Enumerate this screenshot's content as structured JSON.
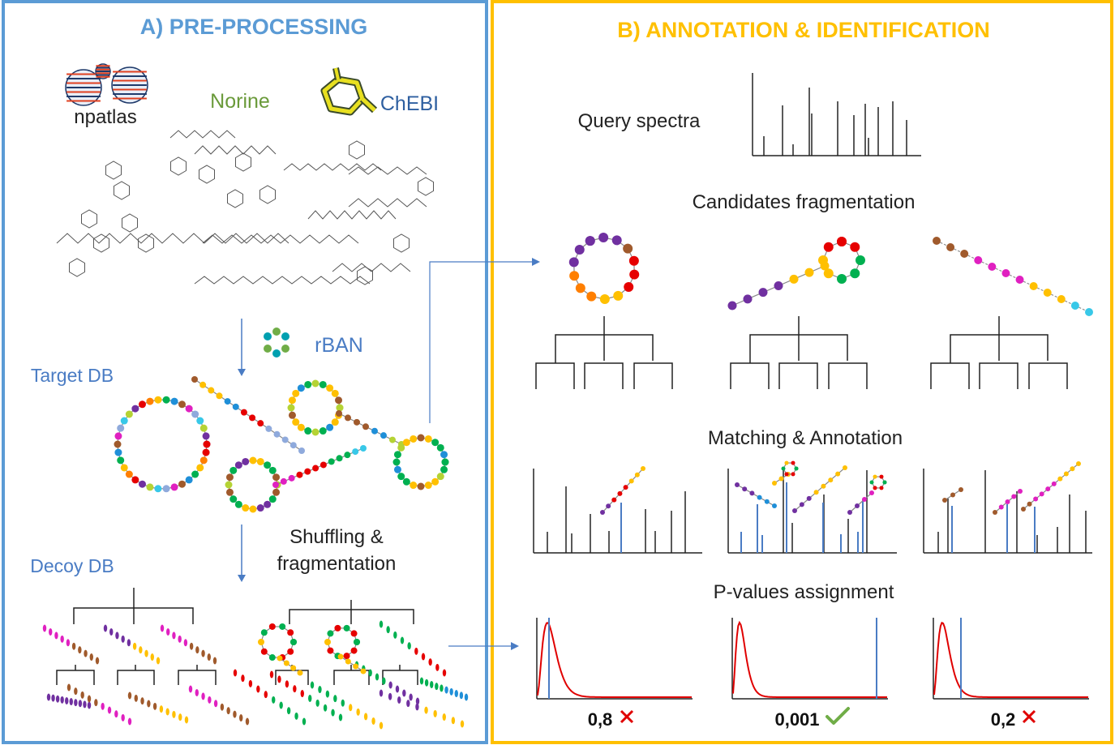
{
  "panel_a": {
    "title": "A) PRE-PROCESSING",
    "border_color": "#5b9bd5",
    "sources": {
      "npatlas": "npatlas",
      "norine": "Norine",
      "chebi": "ChEBI"
    },
    "tool": "rBAN",
    "target_db": "Target DB",
    "shuffle_label_1": "Shuffling &",
    "shuffle_label_2": "fragmentation",
    "decoy_db": "Decoy DB"
  },
  "panel_b": {
    "title": "B) ANNOTATION & IDENTIFICATION",
    "border_color": "#ffc000",
    "query": "Query spectra",
    "candidates": "Candidates fragmentation",
    "matching": "Matching & Annotation",
    "pvalues": "P-values assignment",
    "results": [
      {
        "value": "0,8",
        "mark": "cross"
      },
      {
        "value": "0,001",
        "mark": "check"
      },
      {
        "value": "0,2",
        "mark": "cross"
      }
    ]
  },
  "colors": {
    "monomers": [
      "#7030a0",
      "#e60000",
      "#ff7f00",
      "#ffc000",
      "#00b050",
      "#1f8fd8",
      "#a05a2c",
      "#e020c0",
      "#8faadc",
      "#38c8e8",
      "#b5d334"
    ],
    "spectrum_match": "#4a7cc4",
    "null_distribution": "#e00000",
    "cross": "#e00000",
    "check": "#70ad47"
  }
}
